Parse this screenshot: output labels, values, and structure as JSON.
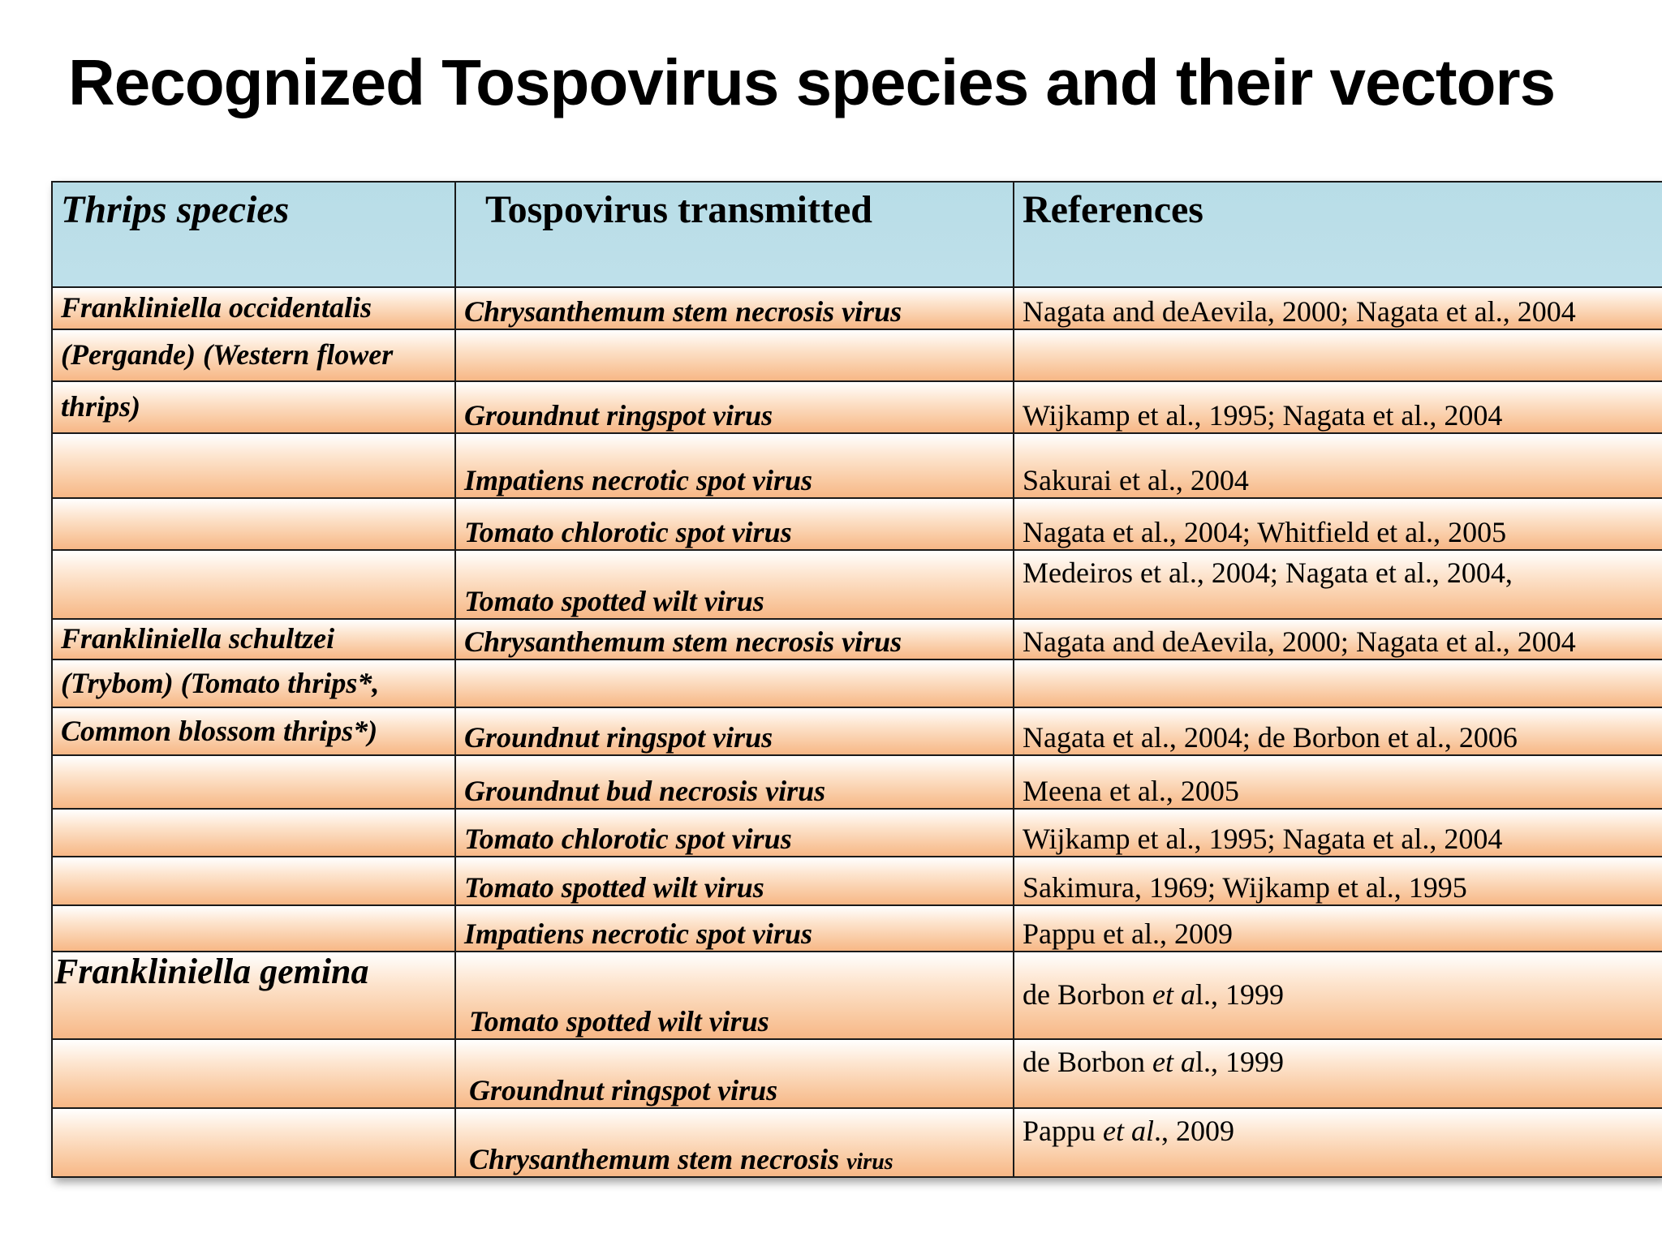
{
  "title": "Recognized Tospovirus species and their vectors",
  "table": {
    "headers": [
      "Thrips species",
      "Tospovirus transmitted",
      "References"
    ],
    "rows": [
      {
        "thrips": "Frankliniella occidentalis",
        "virus": "Chrysanthemum stem necrosis virus",
        "ref": "Nagata and deAevila, 2000; Nagata et al., 2004"
      },
      {
        "thrips": "(Pergande) (Western flower",
        "virus": "",
        "ref": ""
      },
      {
        "thrips": "thrips)",
        "virus": "Groundnut ringspot virus",
        "ref": "Wijkamp et al., 1995; Nagata et al., 2004"
      },
      {
        "thrips": "",
        "virus": "Impatiens necrotic spot virus",
        "ref": "Sakurai et al., 2004"
      },
      {
        "thrips": "",
        "virus": "Tomato chlorotic spot virus",
        "ref": "Nagata et al., 2004; Whitfield et al., 2005"
      },
      {
        "thrips": "",
        "virus": "Tomato spotted wilt virus",
        "ref": "Medeiros et al., 2004; Nagata et al., 2004,"
      },
      {
        "thrips": "Frankliniella schultzei",
        "virus": "Chrysanthemum stem necrosis virus",
        "ref": "Nagata and deAevila, 2000; Nagata et al., 2004"
      },
      {
        "thrips": "(Trybom) (Tomato thrips*,",
        "virus": "",
        "ref": ""
      },
      {
        "thrips": "Common blossom thrips*)",
        "virus": "Groundnut ringspot virus",
        "ref": "Nagata et al., 2004; de Borbon et al., 2006"
      },
      {
        "thrips": "",
        "virus": "Groundnut bud necrosis virus",
        "ref": "Meena et al., 2005"
      },
      {
        "thrips": "",
        "virus": "Tomato chlorotic spot virus",
        "ref": "Wijkamp et al., 1995; Nagata et al., 2004"
      },
      {
        "thrips": "",
        "virus": "Tomato spotted wilt virus",
        "ref": "Sakimura, 1969; Wijkamp et  al., 1995"
      },
      {
        "thrips": "",
        "virus": "Impatiens necrotic spot virus",
        "ref": "Pappu et al., 2009"
      },
      {
        "thrips": "Frankliniella gemina",
        "virus": "Tomato spotted wilt virus",
        "ref_pre": "de Borbon ",
        "ref_em": "et a",
        "ref_post": "l., 1999"
      },
      {
        "thrips": "",
        "virus": "Groundnut ringspot virus",
        "ref_pre": "de Borbon ",
        "ref_em": "et a",
        "ref_post": "l., 1999"
      },
      {
        "thrips": "",
        "virus_main": "Chrysanthemum stem necrosis ",
        "virus_small": "virus",
        "ref_pre": "Pappu ",
        "ref_em": "et al",
        "ref_post": "., 2009"
      }
    ]
  }
}
